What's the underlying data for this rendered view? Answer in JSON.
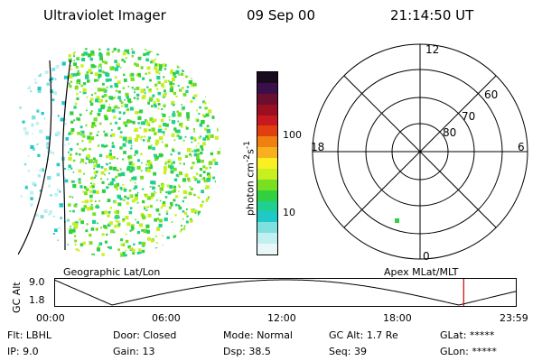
{
  "header": {
    "instrument": "Ultraviolet Imager",
    "date": "09 Sep 00",
    "time": "21:14:50 UT"
  },
  "colorbar": {
    "label_html": "photon cm<sup>-2</sup>s<sup>-1</sup>",
    "ticks": [
      {
        "value": "100",
        "level": 100
      },
      {
        "value": "10",
        "level": 10
      }
    ],
    "colors": [
      "#1a0a20",
      "#3a0f4a",
      "#6a0f30",
      "#9a1020",
      "#c81820",
      "#e04010",
      "#f08010",
      "#f8b020",
      "#f8f020",
      "#c8f020",
      "#78e020",
      "#30d040",
      "#20d090",
      "#20c8c8",
      "#80e0e0",
      "#c0f0f0",
      "#e8f8f8"
    ]
  },
  "left_panel": {
    "caption": "Geographic Lat/Lon"
  },
  "right_panel": {
    "caption": "Apex MLat/MLT",
    "mlt_labels": {
      "top": "12",
      "left": "18",
      "right": "6",
      "bottom": "0"
    },
    "lat_labels": [
      "60",
      "70",
      "80"
    ]
  },
  "altitude_strip": {
    "ylabel": "GC Alt",
    "ticks": [
      "9.0",
      "1.8"
    ],
    "time_ticks": [
      "00:00",
      "06:00",
      "12:00",
      "18:00",
      "23:59"
    ],
    "marker_time": "21:14:50"
  },
  "status": {
    "row1": [
      {
        "label": "Flt:",
        "value": "LBHL"
      },
      {
        "label": "Door:",
        "value": "Closed"
      },
      {
        "label": "Mode:",
        "value": "Normal"
      },
      {
        "label": "GC Alt:",
        "value": "1.7 Re"
      },
      {
        "label": "GLat:",
        "value": "*****"
      }
    ],
    "row2": [
      {
        "label": "IP:",
        "value": "9.0"
      },
      {
        "label": "Gain:",
        "value": "13"
      },
      {
        "label": "Dsp:",
        "value": "38.5"
      },
      {
        "label": "Seq:",
        "value": "39"
      },
      {
        "label": "GLon:",
        "value": "*****"
      }
    ]
  }
}
